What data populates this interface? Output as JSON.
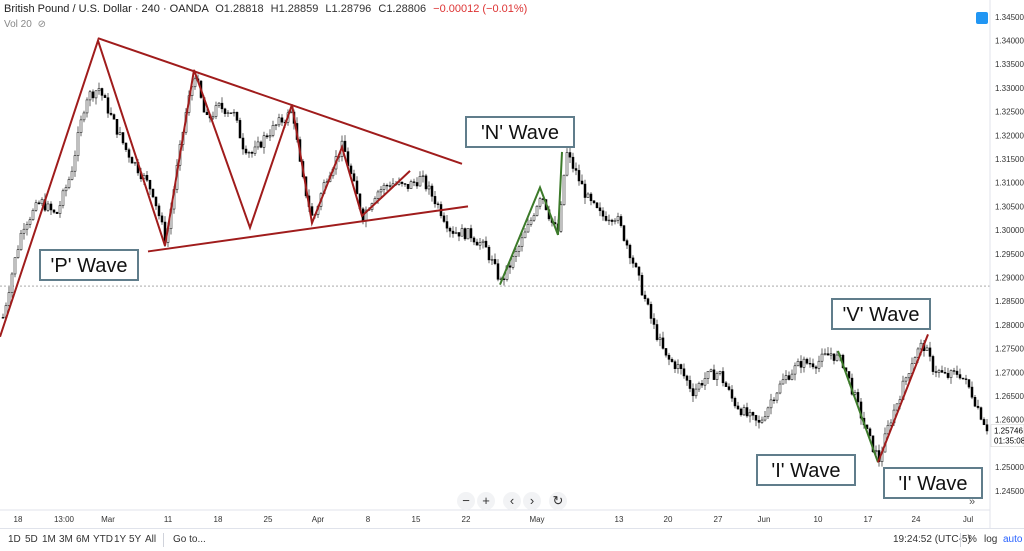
{
  "legend": {
    "symbol": "British Pound / U.S. Dollar · 240 · OANDA",
    "open": "O1.28818",
    "high": "H1.28859",
    "low": "L1.28796",
    "close": "C1.28806",
    "change": "−0.00012 (−0.01%)",
    "volume_label": "Vol 20"
  },
  "bottombar": {
    "ranges": [
      "1D",
      "5D",
      "1M",
      "3M",
      "6M",
      "YTD",
      "1Y",
      "5Y",
      "All"
    ],
    "goto": "Go to...",
    "clock": "19:24:52 (UTC-5)",
    "percent": "%",
    "log": "log",
    "auto": "auto"
  },
  "nav": {
    "zoom_out": "−",
    "zoom_in": "+",
    "back": "‹",
    "forward": "›",
    "reset": "↻",
    "expand": "»"
  },
  "chart_data": {
    "type": "candlestick",
    "x_ticks": [
      "18",
      "13:00",
      "Mar",
      "11",
      "18",
      "25",
      "Apr",
      "8",
      "15",
      "22",
      "May",
      "13",
      "20",
      "27",
      "Jun",
      "10",
      "17",
      "24",
      "Jul"
    ],
    "y_ticks": [
      "1.34500",
      "1.34000",
      "1.33500",
      "1.33000",
      "1.32500",
      "1.32000",
      "1.31500",
      "1.31000",
      "1.30500",
      "1.30000",
      "1.29500",
      "1.29000",
      "1.28500",
      "1.28000",
      "1.27500",
      "1.27000",
      "1.26500",
      "1.26000",
      "1.25500",
      "1.25000",
      "1.24500"
    ],
    "ylim": [
      1.242,
      1.3475
    ],
    "last_price": "1.25746",
    "countdown": "01:35:08",
    "reference_line": 1.2882,
    "price_path": [
      [
        0,
        1.2795
      ],
      [
        12,
        1.292
      ],
      [
        22,
        1.301
      ],
      [
        40,
        1.306
      ],
      [
        55,
        1.303
      ],
      [
        70,
        1.312
      ],
      [
        85,
        1.328
      ],
      [
        98,
        1.33
      ],
      [
        110,
        1.324
      ],
      [
        125,
        1.317
      ],
      [
        140,
        1.312
      ],
      [
        152,
        1.308
      ],
      [
        165,
        1.2975
      ],
      [
        176,
        1.313
      ],
      [
        186,
        1.326
      ],
      [
        194,
        1.333
      ],
      [
        205,
        1.323
      ],
      [
        218,
        1.326
      ],
      [
        232,
        1.325
      ],
      [
        242,
        1.318
      ],
      [
        252,
        1.316
      ],
      [
        265,
        1.32
      ],
      [
        280,
        1.323
      ],
      [
        292,
        1.325
      ],
      [
        300,
        1.312
      ],
      [
        312,
        1.302
      ],
      [
        325,
        1.311
      ],
      [
        342,
        1.318
      ],
      [
        352,
        1.31
      ],
      [
        362,
        1.303
      ],
      [
        375,
        1.308
      ],
      [
        390,
        1.31
      ],
      [
        405,
        1.309
      ],
      [
        420,
        1.311
      ],
      [
        435,
        1.306
      ],
      [
        450,
        1.3
      ],
      [
        470,
        1.299
      ],
      [
        485,
        1.296
      ],
      [
        500,
        1.289
      ],
      [
        515,
        1.295
      ],
      [
        528,
        1.301
      ],
      [
        540,
        1.308
      ],
      [
        552,
        1.301
      ],
      [
        558,
        1.2995
      ],
      [
        565,
        1.3165
      ],
      [
        575,
        1.312
      ],
      [
        588,
        1.306
      ],
      [
        600,
        1.303
      ],
      [
        615,
        1.303
      ],
      [
        628,
        1.296
      ],
      [
        640,
        1.288
      ],
      [
        652,
        1.28
      ],
      [
        665,
        1.273
      ],
      [
        678,
        1.271
      ],
      [
        692,
        1.266
      ],
      [
        705,
        1.269
      ],
      [
        718,
        1.27
      ],
      [
        732,
        1.264
      ],
      [
        745,
        1.261
      ],
      [
        758,
        1.259
      ],
      [
        772,
        1.265
      ],
      [
        785,
        1.269
      ],
      [
        800,
        1.272
      ],
      [
        815,
        1.272
      ],
      [
        830,
        1.274
      ],
      [
        842,
        1.272
      ],
      [
        855,
        1.264
      ],
      [
        868,
        1.256
      ],
      [
        878,
        1.2515
      ],
      [
        888,
        1.259
      ],
      [
        900,
        1.266
      ],
      [
        912,
        1.273
      ],
      [
        922,
        1.276
      ],
      [
        932,
        1.271
      ],
      [
        945,
        1.269
      ],
      [
        958,
        1.27
      ],
      [
        970,
        1.266
      ],
      [
        980,
        1.261
      ],
      [
        988,
        1.2575
      ]
    ],
    "annotations": [
      {
        "label": "'P' Wave",
        "color": "#8b1a1a"
      },
      {
        "label": "'N' Wave",
        "color": "#4a7a2a"
      },
      {
        "label": "'V' Wave",
        "color": "#8b1a1a"
      },
      {
        "label": "'I' Wave",
        "color": "#4a7a2a"
      },
      {
        "label": "'I' Wave",
        "color": "#8b1a1a"
      }
    ],
    "colors": {
      "bull": "#ffffff",
      "bear": "#000000",
      "wick": "#000000",
      "red_line": "#a01c1c",
      "green_line": "#3c7a2a",
      "label_border": "#607d8b"
    }
  }
}
